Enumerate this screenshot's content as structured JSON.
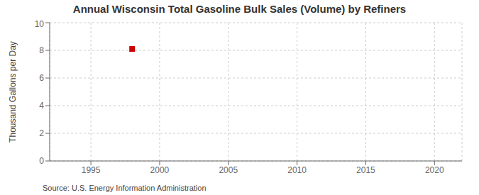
{
  "chart_data": {
    "type": "scatter",
    "title": "Annual Wisconsin Total Gasoline Bulk Sales (Volume) by Refiners",
    "y_label": "Thousand Gallons per Day",
    "source": "Source: U.S. Energy Information Administration",
    "x": [
      1998
    ],
    "values": [
      8.1
    ],
    "color": "#cc0000",
    "marker": "square",
    "xlim": [
      1992,
      2022
    ],
    "ylim": [
      0,
      10
    ],
    "xticks": [
      1995,
      2000,
      2005,
      2010,
      2015,
      2020
    ],
    "yticks": [
      0,
      2,
      4,
      6,
      8,
      10
    ],
    "grid": true
  }
}
